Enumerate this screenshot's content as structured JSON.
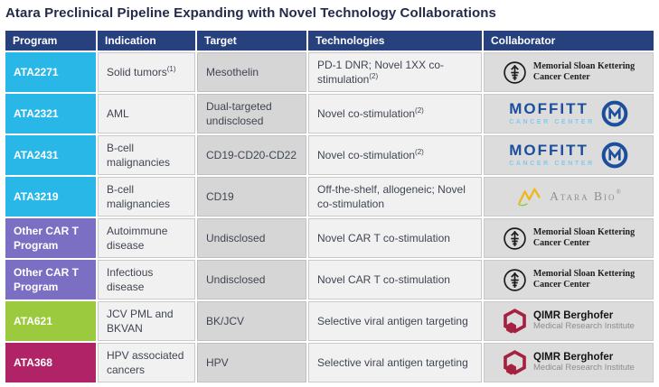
{
  "title": "Atara Preclinical Pipeline Expanding with Novel Technology Collaborations",
  "table": {
    "columns": [
      "Program",
      "Indication",
      "Target",
      "Technologies",
      "Collaborator"
    ],
    "rows": [
      {
        "program": "ATA2271",
        "color_key": "cyan",
        "indication": "Solid tumors",
        "indication_sup": "(1)",
        "target": "Mesothelin",
        "technologies": "PD-1 DNR; Novel 1XX co-stimulation",
        "technologies_sup": "(2)",
        "collaborator": "msk"
      },
      {
        "program": "ATA2321",
        "color_key": "cyan",
        "indication": "AML",
        "target": "Dual-targeted undisclosed",
        "technologies": "Novel co-stimulation",
        "technologies_sup": "(2)",
        "collaborator": "moffitt"
      },
      {
        "program": "ATA2431",
        "color_key": "cyan",
        "indication": "B-cell malignancies",
        "target": "CD19-CD20-CD22",
        "technologies": "Novel co-stimulation",
        "technologies_sup": "(2)",
        "collaborator": "moffitt"
      },
      {
        "program": "ATA3219",
        "color_key": "cyan",
        "indication": "B-cell malignancies",
        "target": "CD19",
        "technologies": "Off-the-shelf, allogeneic; Novel co-stimulation",
        "collaborator": "atara"
      },
      {
        "program": "Other CAR T Program",
        "color_key": "purple",
        "indication": "Autoimmune disease",
        "target": "Undisclosed",
        "technologies": "Novel CAR T co-stimulation",
        "collaborator": "msk"
      },
      {
        "program": "Other CAR T Program",
        "color_key": "purple",
        "indication": "Infectious disease",
        "target": "Undisclosed",
        "technologies": "Novel CAR T co-stimulation",
        "collaborator": "msk"
      },
      {
        "program": "ATA621",
        "color_key": "green",
        "indication": "JCV PML and BKVAN",
        "target": "BK/JCV",
        "technologies": "Selective viral antigen targeting",
        "collaborator": "qimr"
      },
      {
        "program": "ATA368",
        "color_key": "magenta",
        "indication": "HPV associated cancers",
        "target": "HPV",
        "technologies": "Selective viral antigen targeting",
        "collaborator": "qimr"
      }
    ]
  },
  "logos": {
    "msk": {
      "line1": "Memorial Sloan Kettering",
      "line2": "Cancer Center"
    },
    "moffitt": {
      "line1": "MOFFITT",
      "line2": "CANCER CENTER"
    },
    "atara": {
      "text": "Atara Bio",
      "mark": "®"
    },
    "qimr": {
      "line1": "QIMR Berghofer",
      "line2": "Medical Research Institute"
    }
  },
  "colors": {
    "header_bg": "#27407e",
    "cyan": "#29b7e8",
    "purple": "#7a6fc3",
    "green": "#9bca3e",
    "magenta": "#b02366",
    "moffitt_blue": "#1b4e9b",
    "moffitt_light_blue": "#85c8ec",
    "atara_gold": "#eeb71f",
    "atara_green": "#93c83d",
    "atara_gray": "#8f8f8f",
    "qimr_red": "#a6203f",
    "msk_black": "#1b1b1b"
  }
}
